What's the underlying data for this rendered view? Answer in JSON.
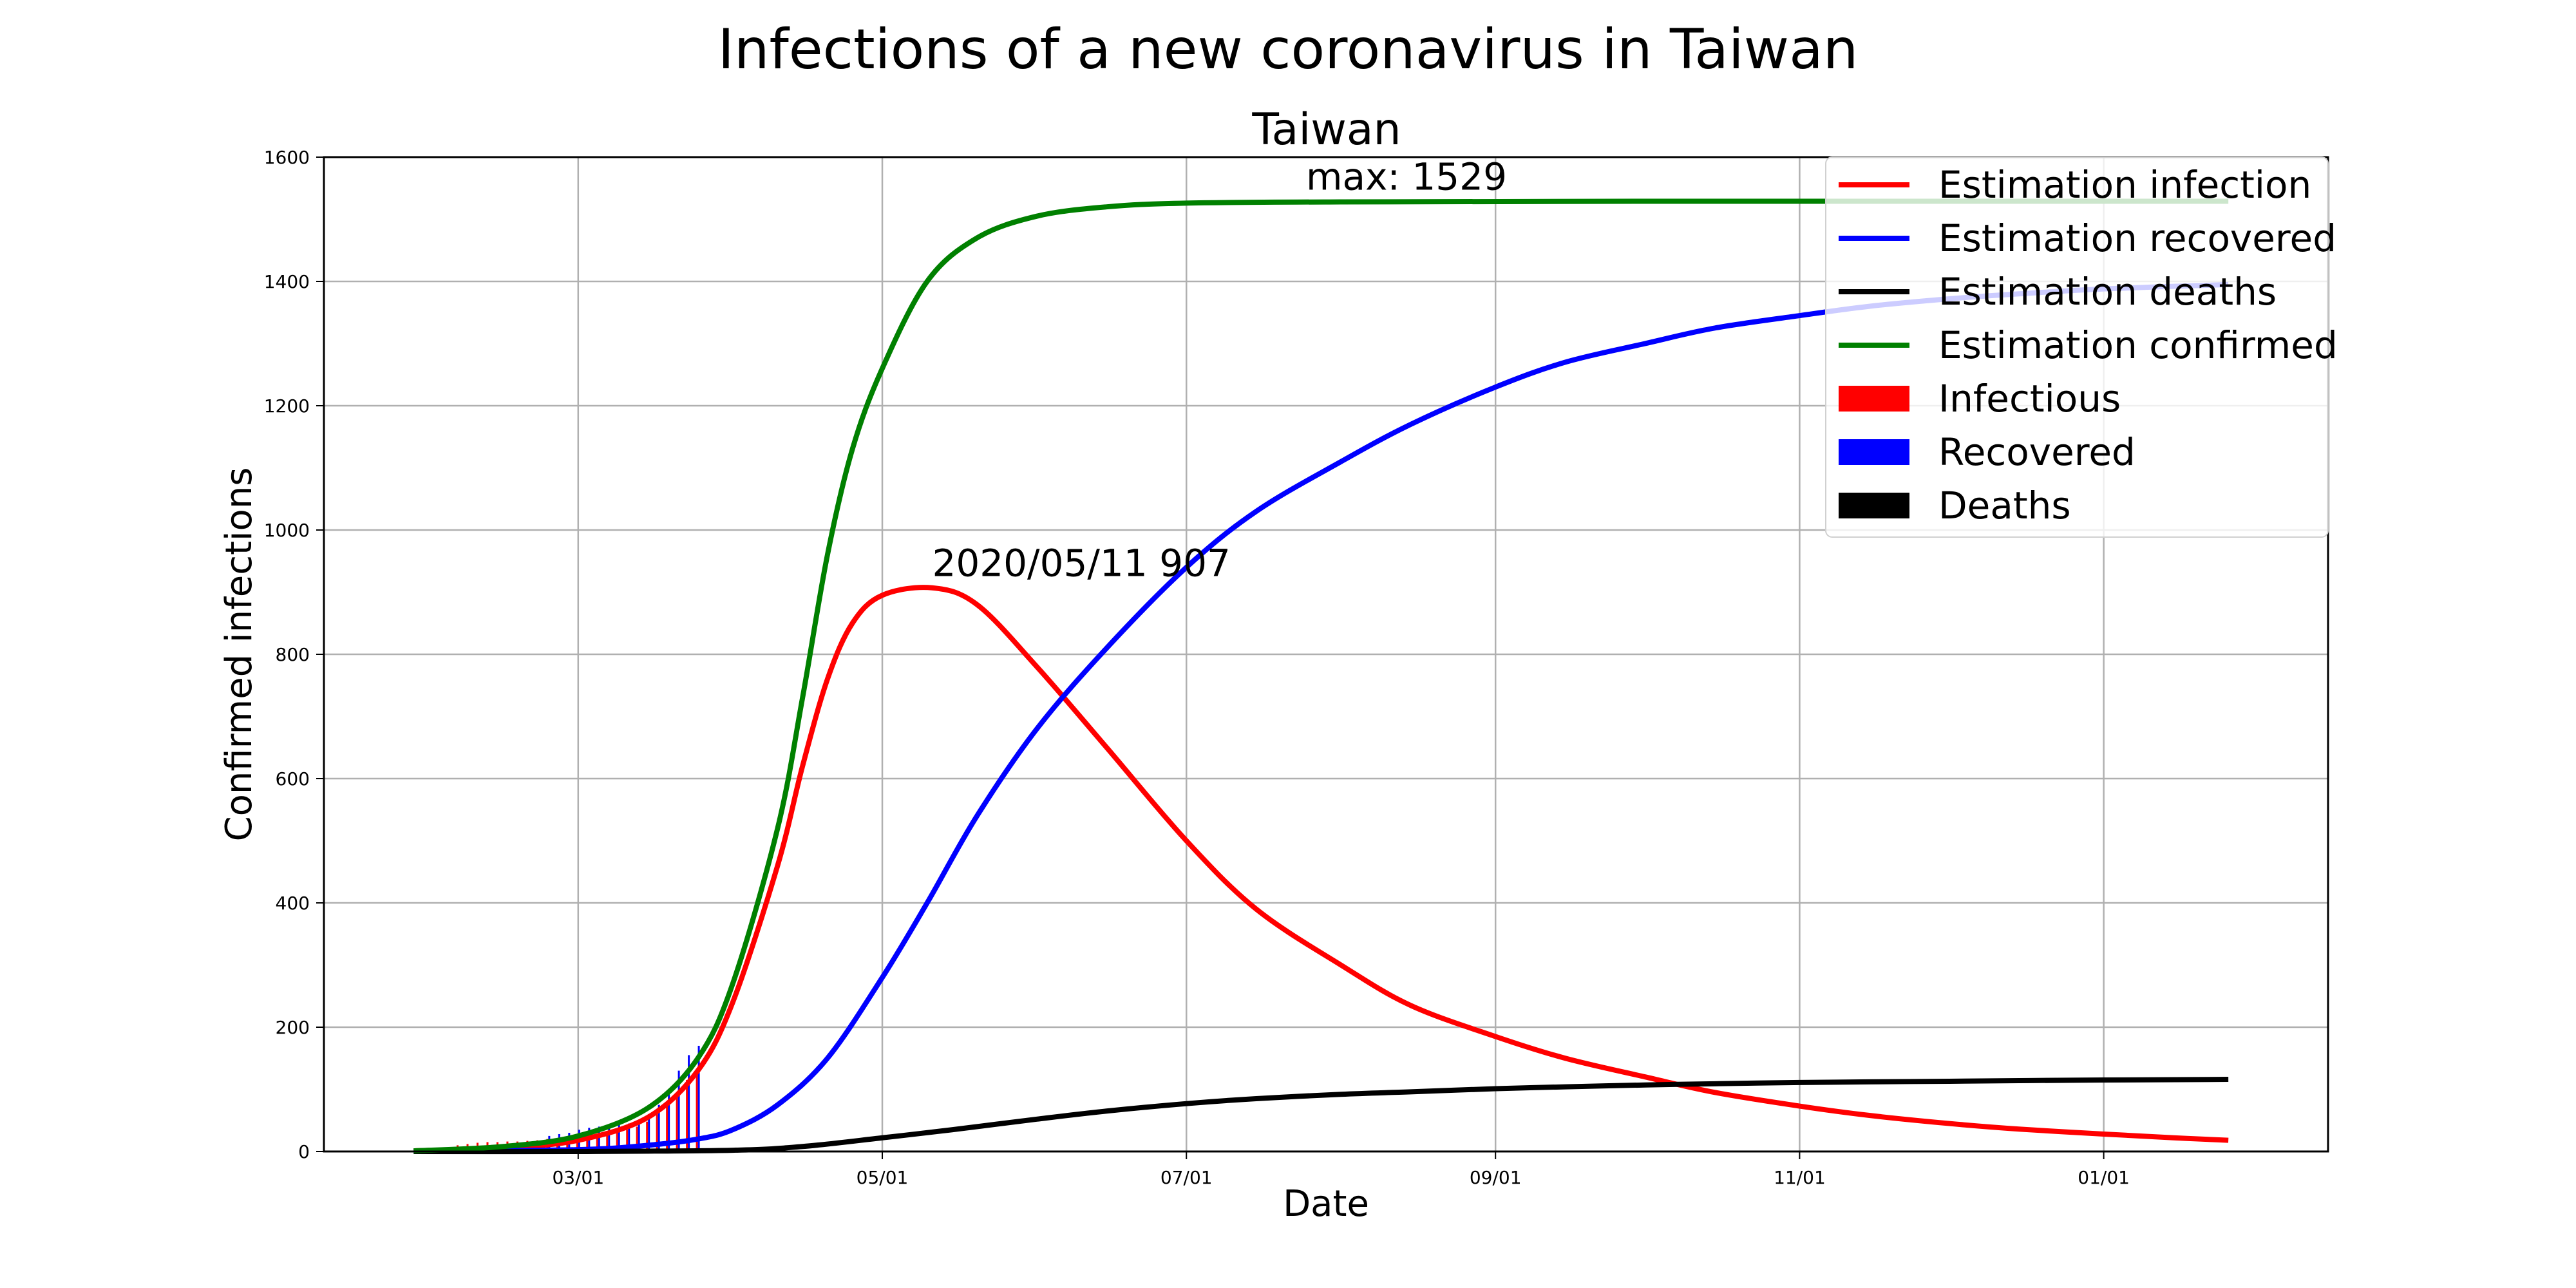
{
  "chart_data": {
    "type": "line",
    "suptitle": "Infections of a new coronavirus in Taiwan",
    "title": "Taiwan",
    "xlabel": "Date",
    "ylabel": "Confirmed infections",
    "x_range": [
      "2020-01-10",
      "2021-02-15"
    ],
    "ylim": [
      0,
      1600
    ],
    "grid": true,
    "legend_position": "top-right",
    "x_ticks": [
      {
        "date": "2020-03-01",
        "label": "03/01"
      },
      {
        "date": "2020-05-01",
        "label": "05/01"
      },
      {
        "date": "2020-07-01",
        "label": "07/01"
      },
      {
        "date": "2020-09-01",
        "label": "09/01"
      },
      {
        "date": "2020-11-01",
        "label": "11/01"
      },
      {
        "date": "2021-01-01",
        "label": "01/01"
      }
    ],
    "y_ticks": [
      0,
      200,
      400,
      600,
      800,
      1000,
      1200,
      1400,
      1600
    ],
    "series": [
      {
        "name": "Estimation infection",
        "kind": "line",
        "color": "#ff0000",
        "points": [
          [
            "2020-01-28",
            1
          ],
          [
            "2020-02-15",
            6
          ],
          [
            "2020-03-01",
            18
          ],
          [
            "2020-03-15",
            55
          ],
          [
            "2020-03-25",
            130
          ],
          [
            "2020-04-01",
            240
          ],
          [
            "2020-04-10",
            460
          ],
          [
            "2020-04-15",
            620
          ],
          [
            "2020-04-20",
            760
          ],
          [
            "2020-04-25",
            850
          ],
          [
            "2020-05-01",
            895
          ],
          [
            "2020-05-11",
            907
          ],
          [
            "2020-05-20",
            880
          ],
          [
            "2020-06-01",
            780
          ],
          [
            "2020-06-15",
            650
          ],
          [
            "2020-07-01",
            500
          ],
          [
            "2020-07-15",
            390
          ],
          [
            "2020-08-01",
            300
          ],
          [
            "2020-08-15",
            235
          ],
          [
            "2020-09-01",
            185
          ],
          [
            "2020-09-15",
            150
          ],
          [
            "2020-10-01",
            120
          ],
          [
            "2020-10-15",
            95
          ],
          [
            "2020-11-01",
            73
          ],
          [
            "2020-11-15",
            58
          ],
          [
            "2020-12-01",
            45
          ],
          [
            "2020-12-15",
            36
          ],
          [
            "2021-01-01",
            28
          ],
          [
            "2021-01-15",
            22
          ],
          [
            "2021-01-26",
            18
          ]
        ]
      },
      {
        "name": "Estimation recovered",
        "kind": "line",
        "color": "#0000ff",
        "points": [
          [
            "2020-01-28",
            0
          ],
          [
            "2020-03-01",
            3
          ],
          [
            "2020-03-15",
            10
          ],
          [
            "2020-03-25",
            20
          ],
          [
            "2020-04-01",
            35
          ],
          [
            "2020-04-10",
            75
          ],
          [
            "2020-04-20",
            150
          ],
          [
            "2020-05-01",
            280
          ],
          [
            "2020-05-10",
            400
          ],
          [
            "2020-05-20",
            540
          ],
          [
            "2020-06-01",
            680
          ],
          [
            "2020-06-15",
            810
          ],
          [
            "2020-07-01",
            940
          ],
          [
            "2020-07-15",
            1030
          ],
          [
            "2020-08-01",
            1110
          ],
          [
            "2020-08-15",
            1170
          ],
          [
            "2020-09-01",
            1230
          ],
          [
            "2020-09-15",
            1270
          ],
          [
            "2020-10-01",
            1300
          ],
          [
            "2020-10-15",
            1325
          ],
          [
            "2020-11-01",
            1345
          ],
          [
            "2020-11-15",
            1360
          ],
          [
            "2020-12-01",
            1372
          ],
          [
            "2020-12-15",
            1380
          ],
          [
            "2021-01-01",
            1388
          ],
          [
            "2021-01-26",
            1395
          ]
        ]
      },
      {
        "name": "Estimation deaths",
        "kind": "line",
        "color": "#000000",
        "points": [
          [
            "2020-01-28",
            0
          ],
          [
            "2020-03-01",
            0
          ],
          [
            "2020-04-01",
            2
          ],
          [
            "2020-04-15",
            8
          ],
          [
            "2020-05-01",
            22
          ],
          [
            "2020-05-15",
            35
          ],
          [
            "2020-06-01",
            52
          ],
          [
            "2020-06-15",
            65
          ],
          [
            "2020-07-01",
            77
          ],
          [
            "2020-07-15",
            85
          ],
          [
            "2020-08-01",
            92
          ],
          [
            "2020-08-15",
            96
          ],
          [
            "2020-09-01",
            101
          ],
          [
            "2020-09-15",
            104
          ],
          [
            "2020-10-01",
            107
          ],
          [
            "2020-10-15",
            109
          ],
          [
            "2020-11-01",
            111
          ],
          [
            "2020-11-15",
            112
          ],
          [
            "2020-12-01",
            113
          ],
          [
            "2020-12-15",
            114
          ],
          [
            "2021-01-01",
            115
          ],
          [
            "2021-01-26",
            116
          ]
        ]
      },
      {
        "name": "Estimation confirmed",
        "kind": "line",
        "color": "#008000",
        "points": [
          [
            "2020-01-28",
            1
          ],
          [
            "2020-02-15",
            8
          ],
          [
            "2020-03-01",
            25
          ],
          [
            "2020-03-15",
            70
          ],
          [
            "2020-03-25",
            150
          ],
          [
            "2020-04-01",
            270
          ],
          [
            "2020-04-10",
            520
          ],
          [
            "2020-04-15",
            730
          ],
          [
            "2020-04-20",
            960
          ],
          [
            "2020-04-25",
            1130
          ],
          [
            "2020-05-01",
            1260
          ],
          [
            "2020-05-10",
            1400
          ],
          [
            "2020-05-20",
            1470
          ],
          [
            "2020-06-01",
            1505
          ],
          [
            "2020-06-15",
            1520
          ],
          [
            "2020-07-01",
            1526
          ],
          [
            "2020-08-01",
            1528
          ],
          [
            "2020-10-01",
            1529
          ],
          [
            "2021-01-26",
            1529
          ]
        ]
      }
    ],
    "bars": [
      {
        "name": "Infectious",
        "color": "#ff0000",
        "values": [
          [
            "2020-02-06",
            10
          ],
          [
            "2020-02-08",
            12
          ],
          [
            "2020-02-10",
            14
          ],
          [
            "2020-02-12",
            15
          ],
          [
            "2020-02-14",
            15
          ],
          [
            "2020-02-16",
            16
          ],
          [
            "2020-02-18",
            16
          ],
          [
            "2020-02-20",
            17
          ],
          [
            "2020-02-22",
            18
          ],
          [
            "2020-02-24",
            20
          ],
          [
            "2020-02-26",
            20
          ],
          [
            "2020-02-28",
            22
          ],
          [
            "2020-03-01",
            23
          ],
          [
            "2020-03-03",
            25
          ],
          [
            "2020-03-05",
            28
          ],
          [
            "2020-03-07",
            30
          ],
          [
            "2020-03-09",
            32
          ],
          [
            "2020-03-11",
            35
          ],
          [
            "2020-03-13",
            40
          ],
          [
            "2020-03-15",
            48
          ],
          [
            "2020-03-17",
            60
          ],
          [
            "2020-03-19",
            75
          ],
          [
            "2020-03-21",
            95
          ],
          [
            "2020-03-23",
            115
          ],
          [
            "2020-03-25",
            130
          ]
        ]
      },
      {
        "name": "Recovered",
        "color": "#0000ff",
        "values": [
          [
            "2020-02-24",
            25
          ],
          [
            "2020-02-26",
            28
          ],
          [
            "2020-02-28",
            30
          ],
          [
            "2020-03-01",
            35
          ],
          [
            "2020-03-03",
            38
          ],
          [
            "2020-03-05",
            40
          ],
          [
            "2020-03-07",
            42
          ],
          [
            "2020-03-09",
            44
          ],
          [
            "2020-03-11",
            45
          ],
          [
            "2020-03-13",
            50
          ],
          [
            "2020-03-15",
            60
          ],
          [
            "2020-03-17",
            75
          ],
          [
            "2020-03-19",
            100
          ],
          [
            "2020-03-21",
            130
          ],
          [
            "2020-03-23",
            155
          ],
          [
            "2020-03-25",
            170
          ]
        ]
      },
      {
        "name": "Deaths",
        "color": "#000000",
        "values": []
      }
    ],
    "annotations": [
      {
        "text": "2020/05/11 907",
        "date": "2020-05-11",
        "value": 907
      },
      {
        "text": "max: 1529",
        "date": "2020-07-25",
        "value": 1529
      }
    ]
  }
}
